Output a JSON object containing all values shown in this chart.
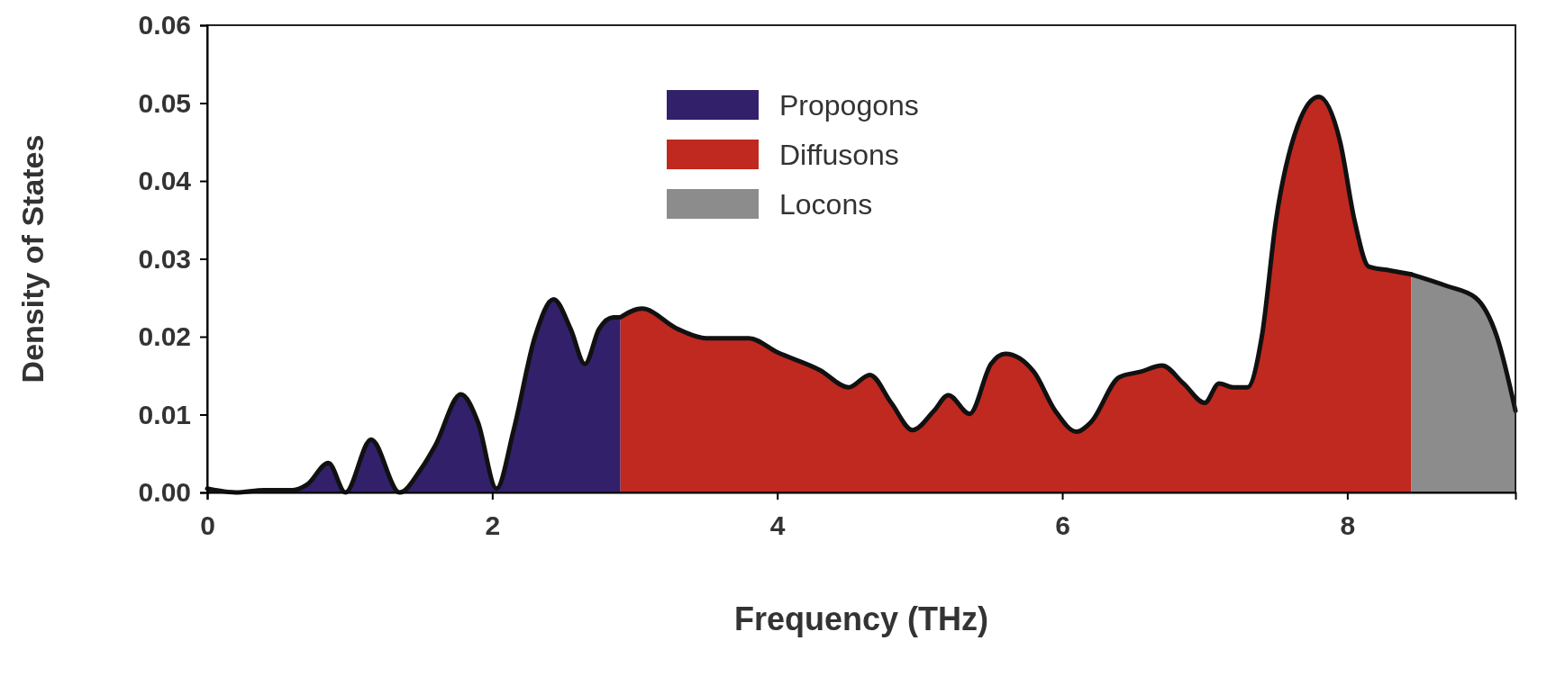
{
  "chart_data": {
    "type": "area",
    "xlabel": "Frequency (THz)",
    "ylabel": "Density of States",
    "xlim": [
      0,
      9.18
    ],
    "xticks": [
      0,
      2,
      4,
      6,
      8
    ],
    "ylim": [
      0,
      0.06
    ],
    "yticks": [
      {
        "value": 0,
        "label": "0.00"
      },
      {
        "value": 0.01,
        "label": "0.01"
      },
      {
        "value": 0.02,
        "label": "0.02"
      },
      {
        "value": 0.03,
        "label": "0.03"
      },
      {
        "value": 0.04,
        "label": "0.04"
      },
      {
        "value": 0.05,
        "label": "0.05"
      },
      {
        "value": 0.06,
        "label": "0.06"
      }
    ],
    "grid": false,
    "legend": "top",
    "series": [
      {
        "name": "Propogons",
        "color": "#33206b",
        "x": [
          0,
          0.2,
          0.4,
          0.6,
          0.7,
          0.85,
          0.97,
          1.15,
          1.35,
          1.5,
          1.6,
          1.78,
          1.9,
          2.03,
          2.15,
          2.3,
          2.43,
          2.55,
          2.65,
          2.75,
          2.85,
          2.9
        ],
        "values": [
          0.0005,
          0,
          0.0003,
          0.0003,
          0.001,
          0.0038,
          0,
          0.0068,
          0,
          0.003,
          0.006,
          0.0126,
          0.009,
          0.0005,
          0.008,
          0.02,
          0.0248,
          0.021,
          0.0165,
          0.021,
          0.0225,
          0.0225
        ]
      },
      {
        "name": "Diffusons",
        "color": "#c0291f",
        "x": [
          2.9,
          3.05,
          3.3,
          3.5,
          3.8,
          4.0,
          4.3,
          4.5,
          4.65,
          4.8,
          4.95,
          5.1,
          5.2,
          5.35,
          5.5,
          5.6,
          5.8,
          5.95,
          6.1,
          6.2,
          6.4,
          6.55,
          6.7,
          6.85,
          7.0,
          7.1,
          7.2,
          7.3,
          7.4,
          7.5,
          7.65,
          7.8,
          7.95,
          8.05,
          8.15,
          8.3,
          8.45
        ],
        "values": [
          0.0225,
          0.0236,
          0.021,
          0.0198,
          0.0198,
          0.018,
          0.0157,
          0.0135,
          0.0151,
          0.0115,
          0.008,
          0.0105,
          0.0125,
          0.0101,
          0.0165,
          0.0178,
          0.0155,
          0.0105,
          0.0078,
          0.009,
          0.0148,
          0.0155,
          0.0163,
          0.014,
          0.0115,
          0.014,
          0.0135,
          0.0135,
          0.02,
          0.035,
          0.047,
          0.0508,
          0.045,
          0.035,
          0.029,
          0.0285,
          0.028
        ]
      },
      {
        "name": "Locons",
        "color": "#8c8c8c",
        "x": [
          8.45,
          8.7,
          8.9,
          9.05,
          9.18
        ],
        "values": [
          0.028,
          0.0265,
          0.025,
          0.02,
          0.0105
        ]
      }
    ]
  }
}
